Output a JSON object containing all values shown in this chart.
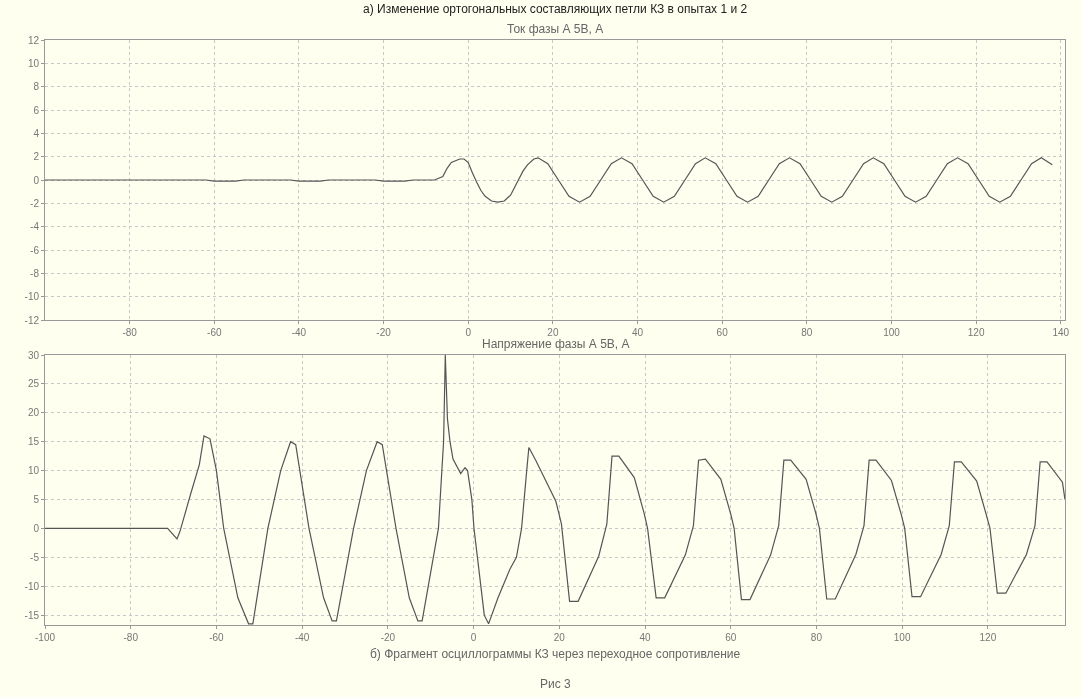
{
  "chart_data": [
    {
      "type": "line",
      "title": "Ток фазы А 5В, А",
      "annotations": [
        "а) Изменение ортогональных составляющих петли КЗ в опытах 1 и 2"
      ],
      "x": [
        -100,
        -62,
        -60,
        -55,
        -53,
        -42,
        -40,
        -35,
        -33,
        -22,
        -20,
        -15,
        -13,
        -8,
        -6,
        -5,
        -4,
        -2,
        -1,
        0,
        1,
        2,
        3,
        4,
        5.5,
        7,
        8.5,
        10,
        11,
        12,
        13,
        14,
        15.5,
        16.5,
        18.8,
        21.3,
        23.8,
        26.3,
        28.8,
        31.3,
        33.8,
        36.2,
        38.7,
        41.2,
        43.7,
        46.2,
        48.7,
        51.2,
        53.7,
        56,
        58.5,
        61,
        63.5,
        66,
        68.5,
        71,
        73.5,
        75.9,
        78.4,
        80.9,
        83.4,
        85.9,
        88.4,
        90.9,
        93.4,
        95.7,
        98.2,
        100.7,
        103.2,
        105.7,
        108.2,
        110.7,
        113.2,
        115.6,
        118.1,
        120.6,
        123.1,
        125.6,
        128.1,
        130.6,
        133.1,
        135.4,
        138
      ],
      "series": [
        {
          "color": "#555555",
          "values": [
            0,
            0,
            -0.1,
            -0.1,
            0,
            0,
            -0.1,
            -0.1,
            0,
            0,
            -0.1,
            -0.1,
            0,
            0,
            0.3,
            1.0,
            1.5,
            1.8,
            1.8,
            1.5,
            0.6,
            -0.2,
            -0.9,
            -1.4,
            -1.8,
            -1.9,
            -1.8,
            -1.3,
            -0.6,
            0.1,
            0.8,
            1.3,
            1.8,
            1.9,
            1.4,
            0,
            -1.4,
            -1.9,
            -1.4,
            0,
            1.4,
            1.9,
            1.4,
            0,
            -1.4,
            -1.9,
            -1.4,
            0,
            1.4,
            1.9,
            1.4,
            0,
            -1.4,
            -1.9,
            -1.4,
            0,
            1.4,
            1.9,
            1.4,
            0,
            -1.4,
            -1.9,
            -1.4,
            0,
            1.4,
            1.9,
            1.4,
            0,
            -1.4,
            -1.9,
            -1.4,
            0,
            1.4,
            1.9,
            1.4,
            0,
            -1.4,
            -1.9,
            -1.4,
            0,
            1.4,
            1.9,
            1.3
          ]
        }
      ],
      "xlim": [
        -100,
        141
      ],
      "xticks": [
        -80,
        -60,
        -40,
        -20,
        0,
        20,
        40,
        60,
        80,
        100,
        120,
        140
      ],
      "ylim": [
        -12,
        12
      ],
      "yticks": [
        -12,
        -10,
        -8,
        -6,
        -4,
        -2,
        0,
        2,
        4,
        6,
        8,
        10,
        12
      ],
      "grid": true,
      "marker": "none",
      "line_style": "solid"
    },
    {
      "type": "line",
      "title": "Напряжение фазы А 5В, А",
      "annotations": [
        "б) Фрагмент осциллограммы КЗ через переходное сопротивление",
        "Рис 3"
      ],
      "x": [
        -100,
        -71.4,
        -69.2,
        -68.5,
        -66,
        -64,
        -62.9,
        -61.5,
        -60,
        -58.3,
        -55,
        -52.5,
        -51.5,
        -48,
        -45,
        -42.7,
        -41.5,
        -38.4,
        -35,
        -33,
        -32,
        -28,
        -25,
        -22.5,
        -21.3,
        -18.1,
        -15,
        -13,
        -12,
        -8.2,
        -7,
        -6.6,
        -6.1,
        -5.5,
        -4.8,
        -3,
        -2,
        -1.4,
        -0.4,
        0.1,
        0.9,
        2.5,
        3.5,
        5.7,
        8.5,
        10,
        11.2,
        12.4,
        12.9,
        14.5,
        19.2,
        20.5,
        22.4,
        24.4,
        29.2,
        31.1,
        32.3,
        33.9,
        37.5,
        39.8,
        40.6,
        42.6,
        44.6,
        49.4,
        51.3,
        52.5,
        54.1,
        57.7,
        60,
        60.8,
        62.5,
        64.5,
        69.3,
        71.2,
        72.4,
        74,
        77.6,
        79.9,
        80.7,
        82.4,
        84.4,
        89.2,
        91.1,
        92.3,
        93.9,
        97.5,
        99.8,
        100.6,
        102.3,
        104.3,
        109.1,
        111,
        112.2,
        113.8,
        117.4,
        119.7,
        120.5,
        122.2,
        124.2,
        129,
        131,
        132.2,
        133.8,
        137.4,
        138
      ],
      "series": [
        {
          "color": "#555555",
          "values": [
            0,
            0,
            -1.8,
            -0.5,
            6,
            11,
            16,
            15.5,
            10,
            0,
            -12,
            -16.5,
            -16.5,
            0,
            10,
            15,
            14.5,
            0,
            -12,
            -16,
            -16,
            0,
            10,
            15,
            14.5,
            0,
            -12,
            -16,
            -16,
            0,
            15,
            30,
            19,
            15,
            12,
            9.5,
            10.5,
            10,
            5,
            0,
            -5,
            -15,
            -16.5,
            -12,
            -7,
            -5,
            0,
            10,
            14,
            11.8,
            4.7,
            0.8,
            -12.6,
            -12.6,
            -4.8,
            0.8,
            12.5,
            12.5,
            8.8,
            2.6,
            0,
            -12,
            -12,
            -4.6,
            0.5,
            11.8,
            12,
            8.5,
            2.5,
            0,
            -12.3,
            -12.3,
            -4.6,
            0.5,
            11.8,
            11.8,
            8.5,
            2.5,
            0,
            -12.2,
            -12.2,
            -4.5,
            0.5,
            11.8,
            11.8,
            8.3,
            2.4,
            0,
            -11.8,
            -11.8,
            -4.5,
            0.5,
            11.5,
            11.5,
            8.2,
            2.2,
            0,
            -11.2,
            -11.2,
            -4.5,
            0.5,
            11.5,
            11.5,
            8,
            5
          ]
        }
      ],
      "xlim": [
        -100,
        138
      ],
      "xticks": [
        -100,
        -80,
        -60,
        -40,
        -20,
        0,
        20,
        40,
        60,
        80,
        100,
        120
      ],
      "ylim": [
        -16.7,
        30
      ],
      "yticks": [
        -15,
        -10,
        -5,
        0,
        5,
        10,
        15,
        20,
        25,
        30
      ],
      "grid": true,
      "marker": "none",
      "line_style": "solid"
    }
  ]
}
